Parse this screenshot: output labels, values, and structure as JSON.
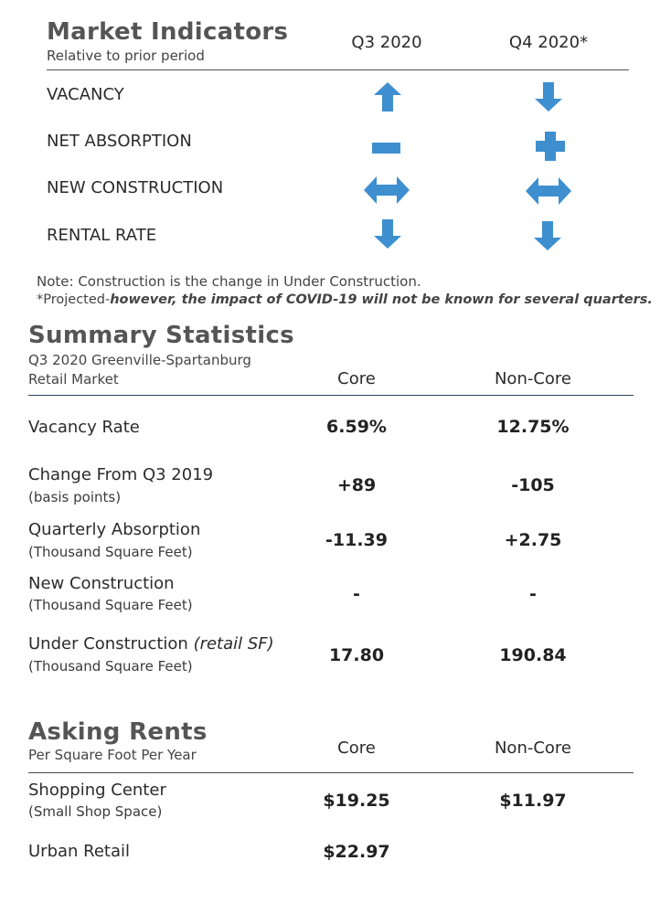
{
  "market_indicators": {
    "title": "Market Indicators",
    "subtitle": "Relative to prior period",
    "columns": [
      "Q3 2020",
      "Q4 2020*"
    ],
    "rows": [
      {
        "label": "VACANCY",
        "q3_icon": "arrow-up-icon",
        "q4_icon": "arrow-down-icon"
      },
      {
        "label": "NET ABSORPTION",
        "q3_icon": "minus-icon",
        "q4_icon": "plus-icon"
      },
      {
        "label": "NEW CONSTRUCTION",
        "q3_icon": "arrow-left-right-icon",
        "q4_icon": "arrow-left-right-icon"
      },
      {
        "label": "RENTAL RATE",
        "q3_icon": "arrow-down-icon",
        "q4_icon": "arrow-down-icon"
      }
    ],
    "icon_color": "#3d8fcf"
  },
  "notes": {
    "line1": "Note: Construction is the change in Under Construction.",
    "line2_prefix": "*Projected-",
    "line2_emphasis": "however, the impact of COVID-19 will not be known for several quarters."
  },
  "summary_statistics": {
    "title": "Summary Statistics",
    "subtitle_line1": "Q3 2020 Greenville-Spartanburg",
    "subtitle_line2": "Retail Market",
    "columns": [
      "Core",
      "Non-Core"
    ],
    "rows": [
      {
        "label": "Vacancy Rate",
        "unit": "",
        "core": "6.59%",
        "noncore": "12.75%"
      },
      {
        "label": "Change From Q3 2019",
        "unit": "(basis points)",
        "core": "+89",
        "noncore": "-105"
      },
      {
        "label": "Quarterly Absorption",
        "unit": "(Thousand Square Feet)",
        "core": "-11.39",
        "noncore": "+2.75"
      },
      {
        "label": "New Construction",
        "unit": "(Thousand Square Feet)",
        "core": "-",
        "noncore": "-"
      },
      {
        "label": "Under Construction",
        "label_italic": "(retail SF)",
        "unit": "(Thousand Square Feet)",
        "core": "17.80",
        "noncore": "190.84"
      }
    ]
  },
  "asking_rents": {
    "title": "Asking Rents",
    "subtitle": "Per Square Foot Per Year",
    "columns": [
      "Core",
      "Non-Core"
    ],
    "rows": [
      {
        "label": "Shopping Center",
        "unit": "(Small Shop Space)",
        "core": "$19.25",
        "noncore": "$11.97"
      },
      {
        "label": "Urban Retail",
        "unit": "",
        "core": "$22.97",
        "noncore": ""
      }
    ]
  },
  "colors": {
    "heading": "#555555",
    "rule": "#2d3e5e",
    "icon": "#3d8fcf"
  }
}
